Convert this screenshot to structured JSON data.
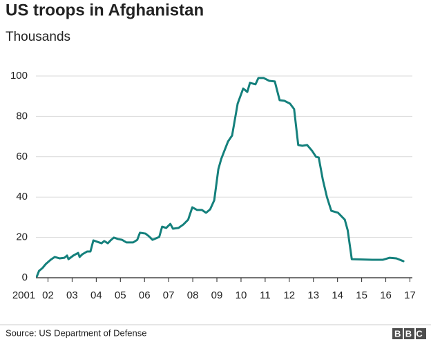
{
  "chart_data": {
    "type": "line",
    "title": "US troops in Afghanistan",
    "subtitle": "Thousands",
    "source": "Source: US Department of Defense",
    "logo": "BBC",
    "color": "#14807c",
    "grid": true,
    "xlim": [
      2001.5,
      2017.1
    ],
    "ylim": [
      0,
      100
    ],
    "yticks": [
      0,
      20,
      40,
      60,
      80,
      100
    ],
    "xticks": [
      {
        "value": 2001,
        "label": "2001"
      },
      {
        "value": 2002,
        "label": "02"
      },
      {
        "value": 2003,
        "label": "03"
      },
      {
        "value": 2004,
        "label": "04"
      },
      {
        "value": 2005,
        "label": "05"
      },
      {
        "value": 2006,
        "label": "06"
      },
      {
        "value": 2007,
        "label": "07"
      },
      {
        "value": 2008,
        "label": "08"
      },
      {
        "value": 2009,
        "label": "09"
      },
      {
        "value": 2010,
        "label": "10"
      },
      {
        "value": 2011,
        "label": "11"
      },
      {
        "value": 2012,
        "label": "12"
      },
      {
        "value": 2013,
        "label": "13"
      },
      {
        "value": 2014,
        "label": "14"
      },
      {
        "value": 2015,
        "label": "15"
      },
      {
        "value": 2016,
        "label": "16"
      },
      {
        "value": 2017,
        "label": "17"
      }
    ],
    "x": [
      2001.54,
      2001.63,
      2001.77,
      2001.91,
      2002.11,
      2002.28,
      2002.48,
      2002.68,
      2002.79,
      2002.85,
      2003.05,
      2003.25,
      2003.31,
      2003.42,
      2003.62,
      2003.76,
      2003.88,
      2004.05,
      2004.22,
      2004.33,
      2004.48,
      2004.62,
      2004.73,
      2004.9,
      2005.07,
      2005.25,
      2005.53,
      2005.7,
      2005.81,
      2006.04,
      2006.19,
      2006.33,
      2006.61,
      2006.73,
      2006.9,
      2007.07,
      2007.18,
      2007.41,
      2007.61,
      2007.81,
      2007.98,
      2008.18,
      2008.38,
      2008.55,
      2008.72,
      2008.89,
      2009.06,
      2009.18,
      2009.29,
      2009.46,
      2009.63,
      2009.86,
      2010.09,
      2010.26,
      2010.37,
      2010.6,
      2010.72,
      2010.94,
      2011.17,
      2011.4,
      2011.6,
      2011.8,
      2012.03,
      2012.2,
      2012.37,
      2012.54,
      2012.74,
      2012.94,
      2013.11,
      2013.22,
      2013.39,
      2013.56,
      2013.74,
      2014.02,
      2014.3,
      2014.42,
      2014.59,
      2015.44,
      2015.87,
      2016.16,
      2016.44,
      2016.73
    ],
    "series": [
      {
        "name": "US troops",
        "color": "#14807c",
        "values": [
          0.7,
          3.4,
          4.8,
          6.8,
          8.9,
          10.3,
          9.6,
          9.9,
          11,
          9.2,
          11,
          12.3,
          10.3,
          11.6,
          13,
          13,
          18.5,
          17.8,
          17.1,
          18.2,
          17.1,
          18.8,
          19.9,
          19.2,
          18.8,
          17.5,
          17.5,
          18.8,
          22.3,
          21.9,
          20.5,
          18.8,
          20.2,
          25.3,
          24.7,
          26.7,
          24.3,
          24.7,
          26.4,
          28.8,
          34.9,
          33.6,
          33.6,
          32.2,
          33.9,
          38.4,
          53.8,
          58.9,
          62.3,
          67.5,
          70.5,
          86.3,
          93.8,
          92.1,
          96.6,
          95.9,
          99,
          99,
          97.6,
          97.3,
          88,
          87.7,
          86.3,
          83.6,
          65.8,
          65.4,
          65.8,
          63,
          59.9,
          59.6,
          48.6,
          40,
          33.2,
          32.2,
          28.8,
          23.6,
          9.2,
          8.9,
          8.9,
          9.9,
          9.6,
          8.2
        ]
      }
    ]
  }
}
